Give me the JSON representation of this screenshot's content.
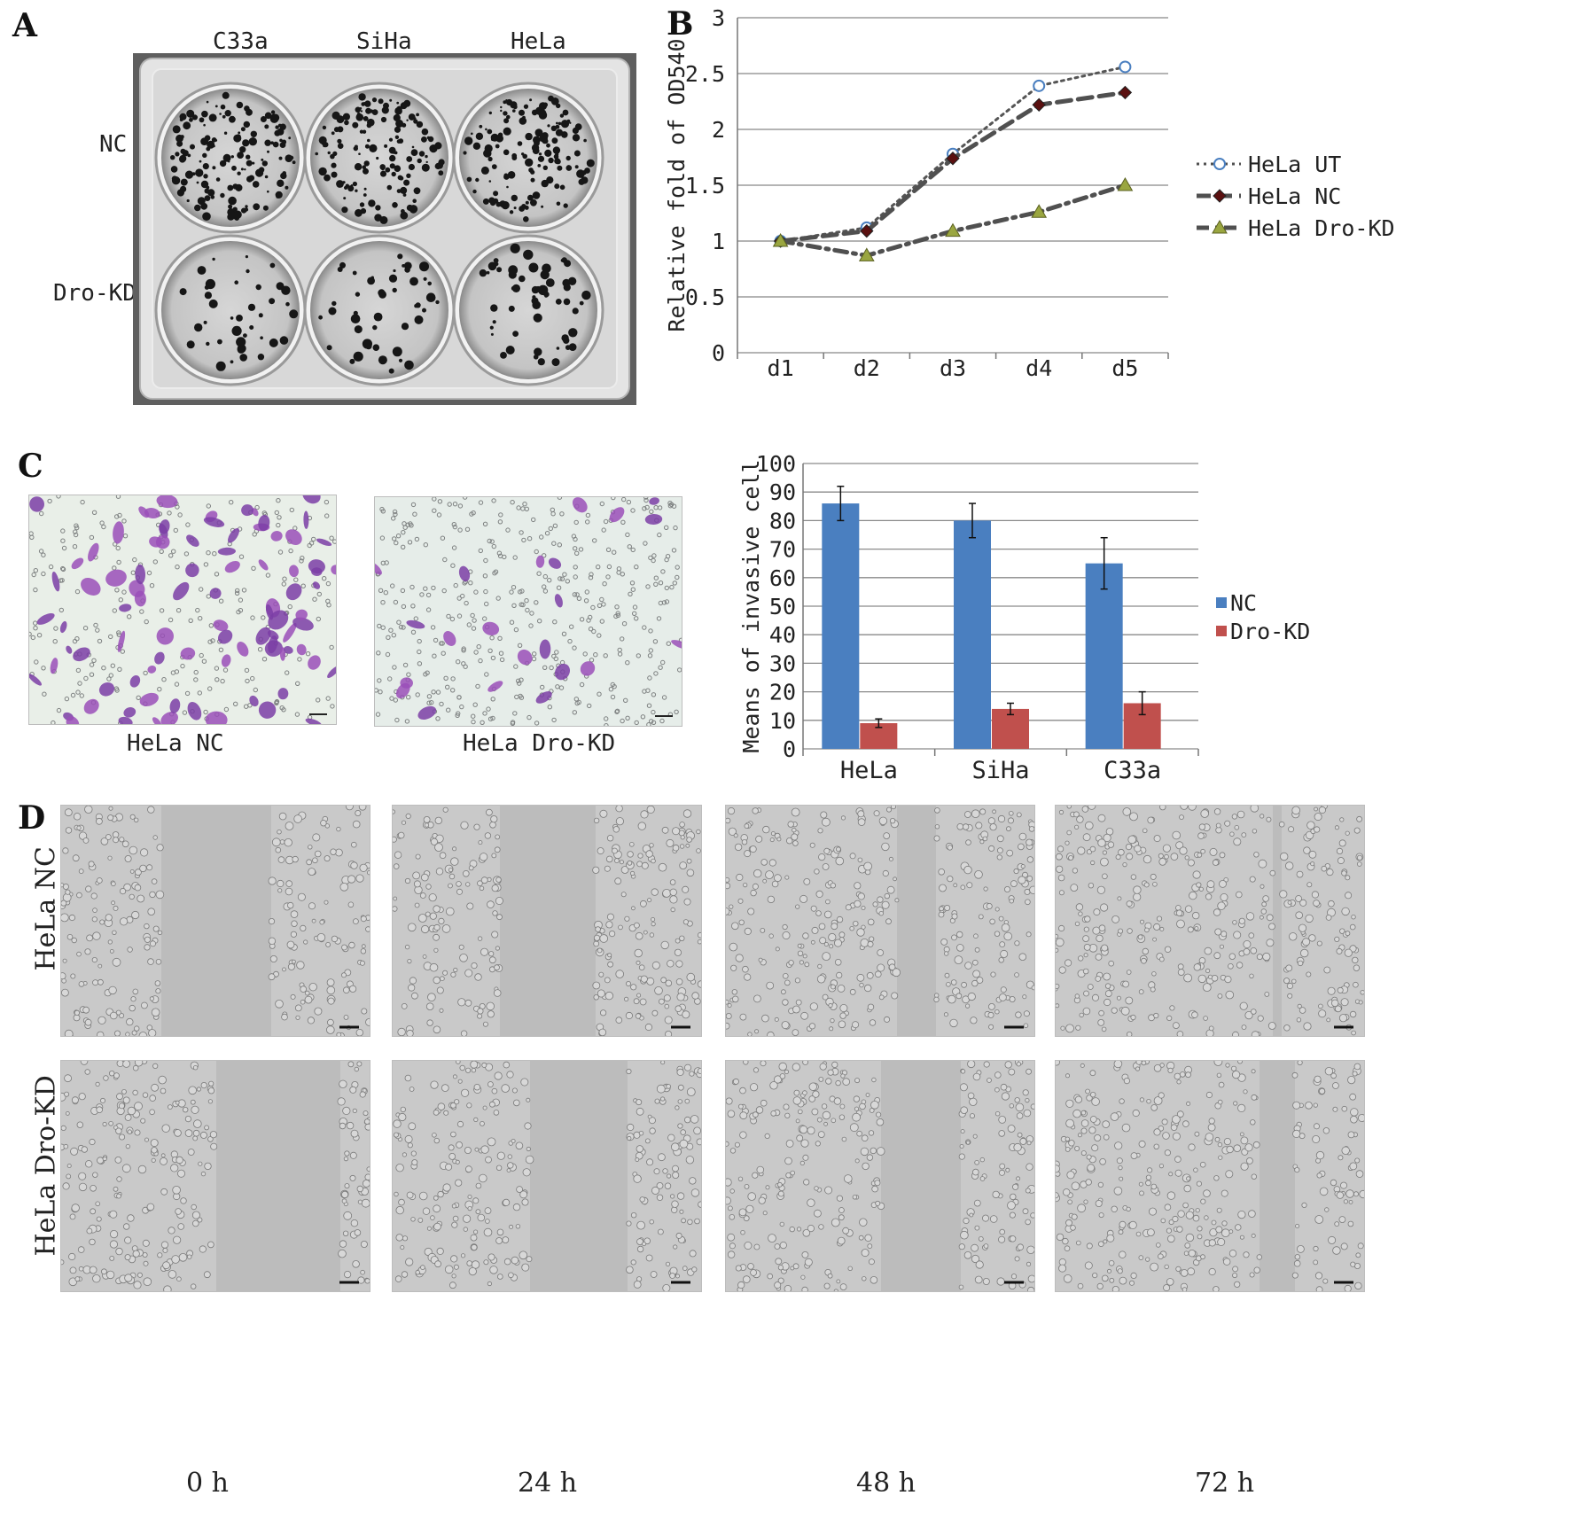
{
  "panels": {
    "A": {
      "letter": "A",
      "column_labels": [
        "C33a",
        "SiHa",
        "HeLa"
      ],
      "row_labels": [
        "NC",
        "Dro-KD"
      ]
    },
    "B": {
      "letter": "B"
    },
    "C": {
      "letter": "C",
      "image_labels": [
        "HeLa NC",
        "HeLa Dro-KD"
      ]
    },
    "D": {
      "letter": "D",
      "row_labels": [
        "HeLa NC",
        "HeLa Dro-KD"
      ],
      "time_labels": [
        "0 h",
        "24 h",
        "48 h",
        "72 h"
      ]
    }
  },
  "chart_data": [
    {
      "type": "line",
      "panel": "B",
      "title": "",
      "xlabel": "",
      "ylabel": "Relative fold of OD540",
      "categories": [
        "d1",
        "d2",
        "d3",
        "d4",
        "d5"
      ],
      "ylim": [
        0,
        3
      ],
      "yticks": [
        "0",
        "0.5",
        "1",
        "1.5",
        "2",
        "2.5",
        "3"
      ],
      "grid": true,
      "legend_position": "right",
      "series": [
        {
          "name": "HeLa UT",
          "values": [
            1.0,
            1.12,
            1.78,
            2.39,
            2.56
          ],
          "color": "#4a7fc0",
          "style": "dotted",
          "marker": "circle"
        },
        {
          "name": "HeLa NC",
          "values": [
            1.0,
            1.09,
            1.74,
            2.22,
            2.33
          ],
          "color": "#4a4a4a",
          "style": "dashed",
          "marker": "diamond"
        },
        {
          "name": "HeLa Dro-KD",
          "values": [
            1.0,
            0.87,
            1.09,
            1.26,
            1.5
          ],
          "color": "#4a4a4a",
          "style": "dashdot",
          "marker": "triangle"
        }
      ]
    },
    {
      "type": "bar",
      "panel": "C",
      "title": "",
      "xlabel": "",
      "ylabel": "Means of invasive cell",
      "categories": [
        "HeLa",
        "SiHa",
        "C33a"
      ],
      "ylim": [
        0,
        100
      ],
      "yticks": [
        "0",
        "10",
        "20",
        "30",
        "40",
        "50",
        "60",
        "70",
        "80",
        "90",
        "100"
      ],
      "grid": true,
      "legend_position": "right",
      "series": [
        {
          "name": "NC",
          "values": [
            86,
            80,
            65
          ],
          "errors": [
            6,
            6,
            9
          ],
          "color": "#4a7fc0"
        },
        {
          "name": "Dro-KD",
          "values": [
            9,
            14,
            16
          ],
          "errors": [
            1.5,
            2,
            4
          ],
          "color": "#c0504d"
        }
      ]
    }
  ]
}
